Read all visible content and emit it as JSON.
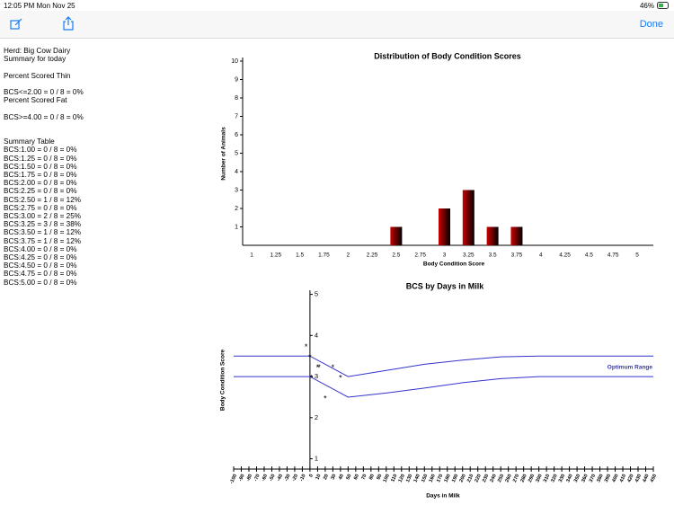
{
  "status_bar": {
    "time": "12:05 PM  Mon Nov 25",
    "battery": "46%"
  },
  "toolbar": {
    "done": "Done"
  },
  "summary": {
    "blocks": [
      [
        "Herd: Big Cow Dairy",
        "Summary for today"
      ],
      [
        "Percent Scored Thin"
      ],
      [
        "BCS<=2.00 = 0 / 8 = 0%",
        "Percent Scored Fat"
      ],
      [
        "BCS>=4.00 = 0 / 8 = 0%"
      ],
      [
        "Summary Table",
        "BCS:1.00 = 0 / 8 = 0%",
        "BCS:1.25 = 0 / 8 = 0%",
        "BCS:1.50 = 0 / 8 = 0%",
        "BCS:1.75 = 0 / 8 = 0%",
        "BCS:2.00 = 0 / 8 = 0%",
        "BCS:2.25 = 0 / 8 = 0%",
        "BCS:2.50 = 1 / 8 = 12%",
        "BCS:2.75 = 0 / 8 = 0%",
        "BCS:3.00 = 2 / 8 = 25%",
        "BCS:3.25 = 3 / 8 = 38%",
        "BCS:3.50 = 1 / 8 = 12%",
        "BCS:3.75 = 1 / 8 = 12%",
        "BCS:4.00 = 0 / 8 = 0%",
        "BCS:4.25 = 0 / 8 = 0%",
        "BCS:4.50 = 0 / 8 = 0%",
        "BCS:4.75 = 0 / 8 = 0%",
        "BCS:5.00 = 0 / 8 = 0%"
      ]
    ]
  },
  "chart_data": [
    {
      "type": "bar",
      "title": "Distribution of Body Condition Scores",
      "xlabel": "Body Condition Score",
      "ylabel": "Number of Animals",
      "categories": [
        "1",
        "1.25",
        "1.5",
        "1.75",
        "2",
        "2.25",
        "2.5",
        "2.75",
        "3",
        "3.25",
        "3.5",
        "3.75",
        "4",
        "4.25",
        "4.5",
        "4.75",
        "5"
      ],
      "values": [
        0,
        0,
        0,
        0,
        0,
        0,
        1,
        0,
        2,
        3,
        1,
        1,
        0,
        0,
        0,
        0,
        0
      ],
      "color": "#cc0000",
      "ylim": [
        0,
        10
      ],
      "yticks": [
        1,
        2,
        3,
        4,
        5,
        6,
        7,
        8,
        9,
        10
      ]
    },
    {
      "type": "line",
      "title": "BCS by Days in Milk",
      "xlabel": "Days in Milk",
      "ylabel": "Body Condition Score",
      "xlim": [
        -100,
        450
      ],
      "ylim": [
        0.75,
        5.1
      ],
      "xticks": [
        -100,
        -90,
        -80,
        -70,
        -60,
        -50,
        -40,
        -30,
        -20,
        -10,
        0,
        10,
        20,
        30,
        40,
        50,
        60,
        70,
        80,
        90,
        100,
        110,
        120,
        130,
        140,
        150,
        160,
        170,
        180,
        190,
        200,
        210,
        220,
        230,
        240,
        250,
        260,
        270,
        280,
        290,
        300,
        310,
        320,
        330,
        340,
        350,
        360,
        370,
        380,
        390,
        400,
        410,
        420,
        430,
        440,
        450
      ],
      "yticks": [
        1,
        2,
        3,
        4,
        5
      ],
      "series": [
        {
          "name": "Optimum Range",
          "color": "#3333cc",
          "x": [
            -100,
            0,
            50,
            100,
            150,
            200,
            250,
            300,
            450
          ],
          "values": [
            3.5,
            3.5,
            3.0,
            3.15,
            3.3,
            3.4,
            3.48,
            3.5,
            3.5
          ]
        },
        {
          "color": "#3333cc",
          "x": [
            -100,
            0,
            50,
            100,
            150,
            200,
            250,
            300,
            450
          ],
          "values": [
            3.0,
            3.0,
            2.5,
            2.6,
            2.72,
            2.85,
            2.95,
            3.0,
            3.0
          ]
        },
        {
          "marker": "*",
          "color": "#000000",
          "x": [
            -5,
            0,
            10,
            12,
            30,
            40,
            2,
            20
          ],
          "values": [
            3.75,
            3.5,
            3.25,
            3.25,
            3.25,
            3.0,
            3.0,
            2.5
          ]
        }
      ]
    }
  ]
}
